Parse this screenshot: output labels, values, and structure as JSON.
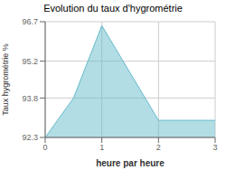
{
  "chart_data": {
    "type": "area",
    "title": "Evolution du taux d'hygrométrie",
    "xlabel": "heure par heure",
    "ylabel": "Taux hygrométrie %",
    "x": [
      0,
      0.5,
      1,
      2,
      2,
      3
    ],
    "values": [
      92.3,
      93.8,
      96.55,
      92.95,
      92.95,
      92.95
    ],
    "color": "#66bbcc",
    "xlim": [
      0,
      3
    ],
    "ylim": [
      92.3,
      96.7
    ],
    "xticks": [
      0,
      1,
      2,
      3
    ],
    "yticks": [
      92.3,
      93.8,
      95.2,
      96.7
    ],
    "grid": true
  }
}
